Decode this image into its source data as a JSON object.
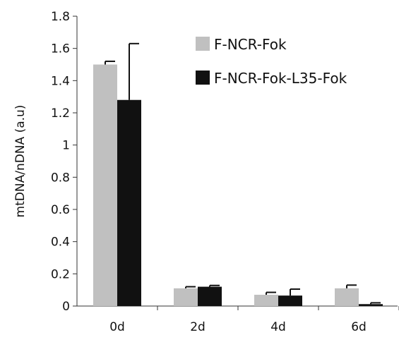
{
  "chart_data": {
    "type": "bar",
    "title": "",
    "xlabel": "",
    "ylabel": "mtDNA/nDNA (a.u)",
    "categories": [
      "0d",
      "2d",
      "4d",
      "6d"
    ],
    "ylim": [
      0,
      1.8
    ],
    "yticks": [
      0,
      0.2,
      0.4,
      0.6,
      0.8,
      1,
      1.2,
      1.4,
      1.6,
      1.8
    ],
    "ytick_labels": [
      "0",
      "0.2",
      "0.4",
      "0.6",
      "0.8",
      "1",
      "1.2",
      "1.4",
      "1.6",
      "1.8"
    ],
    "grid": false,
    "legend_position": "top-right",
    "error_bars": "upper only",
    "series": [
      {
        "name": "F-NCR-Fok",
        "color": "#c0c0c0",
        "values": [
          1.5,
          0.11,
          0.07,
          0.11
        ],
        "errors": [
          0.02,
          0.01,
          0.015,
          0.02
        ]
      },
      {
        "name": "F-NCR-Fok-L35-Fok",
        "color": "#111111",
        "values": [
          1.28,
          0.12,
          0.065,
          0.012
        ],
        "errors": [
          0.35,
          0.008,
          0.04,
          0.008
        ]
      }
    ]
  }
}
